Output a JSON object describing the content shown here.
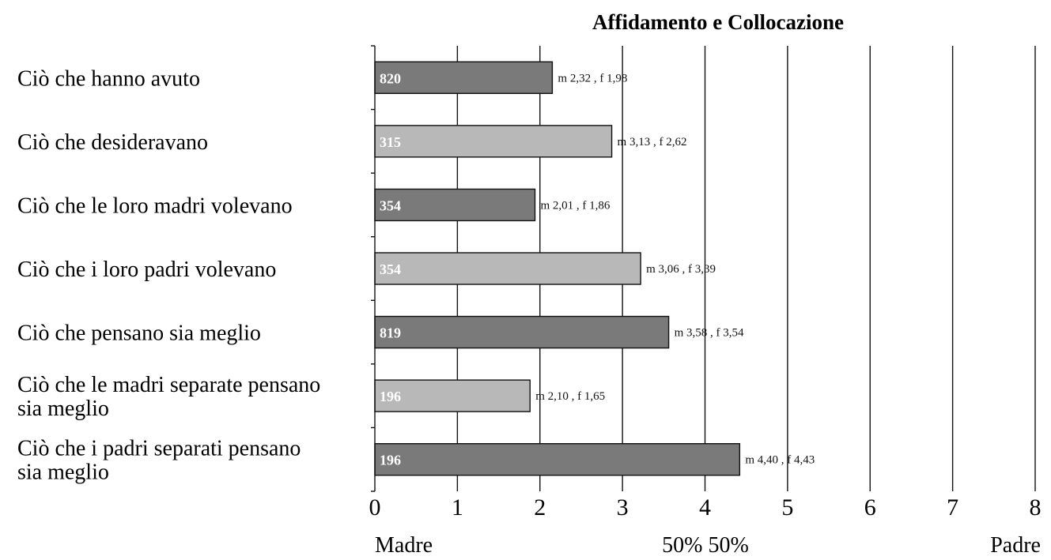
{
  "chart_data": {
    "type": "bar",
    "orientation": "horizontal",
    "title": "Affidamento e Collocazione",
    "categories": [
      [
        "Ciò che hanno avuto"
      ],
      [
        "Ciò che desideravano"
      ],
      [
        "Ciò che le loro madri volevano"
      ],
      [
        "Ciò che i loro padri volevano"
      ],
      [
        "Ciò che pensano sia meglio"
      ],
      [
        "Ciò che le madri separate pensano",
        "sia meglio"
      ],
      [
        "Ciò che i padri separati pensano",
        "sia meglio"
      ]
    ],
    "values": [
      2.15,
      2.87,
      1.94,
      3.22,
      3.56,
      1.88,
      4.42
    ],
    "n_labels": [
      "820",
      "315",
      "354",
      "354",
      "819",
      "196",
      "196"
    ],
    "mean_labels": [
      "m 2,32 , f 1,98",
      "m 3,13 , f 2,62",
      "m 2,01 , f 1,86",
      "m 3,06 , f 3,39",
      "m 3,58 , f 3,54",
      "m 2,10 , f 1,65",
      "m 4,40 , f 4,43"
    ],
    "bar_colors": [
      "#7a7a7a",
      "#b8b8b8",
      "#7a7a7a",
      "#b8b8b8",
      "#7a7a7a",
      "#b8b8b8",
      "#7a7a7a"
    ],
    "xlim": [
      0,
      8
    ],
    "xticks": [
      "0",
      "1",
      "2",
      "3",
      "4",
      "5",
      "6",
      "7",
      "8"
    ],
    "x_bottom_labels": {
      "left": "Madre",
      "center": "50% 50%",
      "right": "Padre"
    },
    "grid": "vertical"
  }
}
